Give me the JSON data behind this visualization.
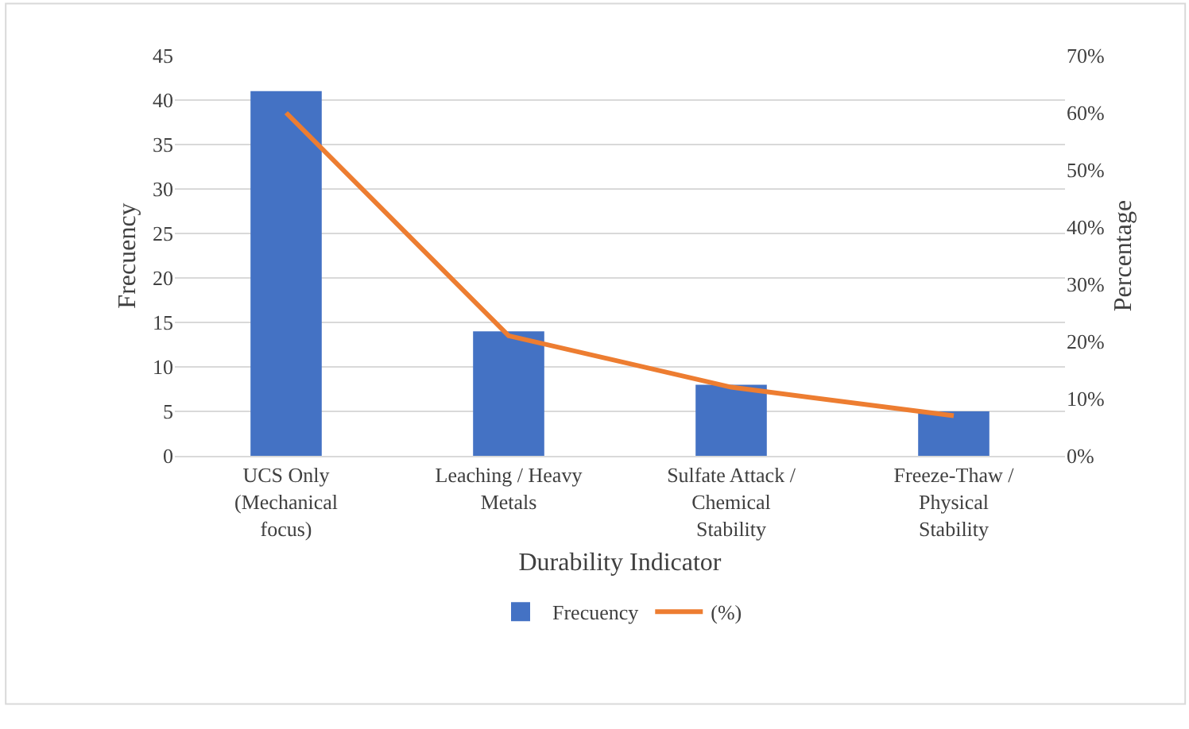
{
  "chart_data": {
    "type": "bar",
    "xlabel": "Durability Indicator",
    "ylabel": "Frecuency",
    "y2label": "Percentage",
    "categories": [
      "UCS Only (Mechanical focus)",
      "Leaching / Heavy Metals",
      "Sulfate Attack / Chemical Stability",
      "Freeze-Thaw / Physical Stability"
    ],
    "series": [
      {
        "name": "Frecuency",
        "color": "#4472c4",
        "values": [
          41,
          14,
          8,
          5
        ]
      },
      {
        "name": "(%)",
        "type": "line",
        "axis": "y2",
        "color": "#ed7d31",
        "values": [
          60,
          21,
          12,
          7
        ]
      }
    ],
    "ylim": [
      0,
      45
    ],
    "yticks": [
      0,
      5,
      10,
      15,
      20,
      25,
      30,
      35,
      40,
      45
    ],
    "y2lim": [
      0,
      70
    ],
    "y2ticks": [
      {
        "value": 0,
        "label": "0%"
      },
      {
        "value": 10,
        "label": "10%"
      },
      {
        "value": 20,
        "label": "20%"
      },
      {
        "value": 30,
        "label": "30%"
      },
      {
        "value": 40,
        "label": "40%"
      },
      {
        "value": 50,
        "label": "50%"
      },
      {
        "value": 60,
        "label": "60%"
      },
      {
        "value": 70,
        "label": "70%"
      }
    ],
    "grid": "y",
    "legend": "bottom",
    "marker": "none",
    "line_style": "solid"
  }
}
